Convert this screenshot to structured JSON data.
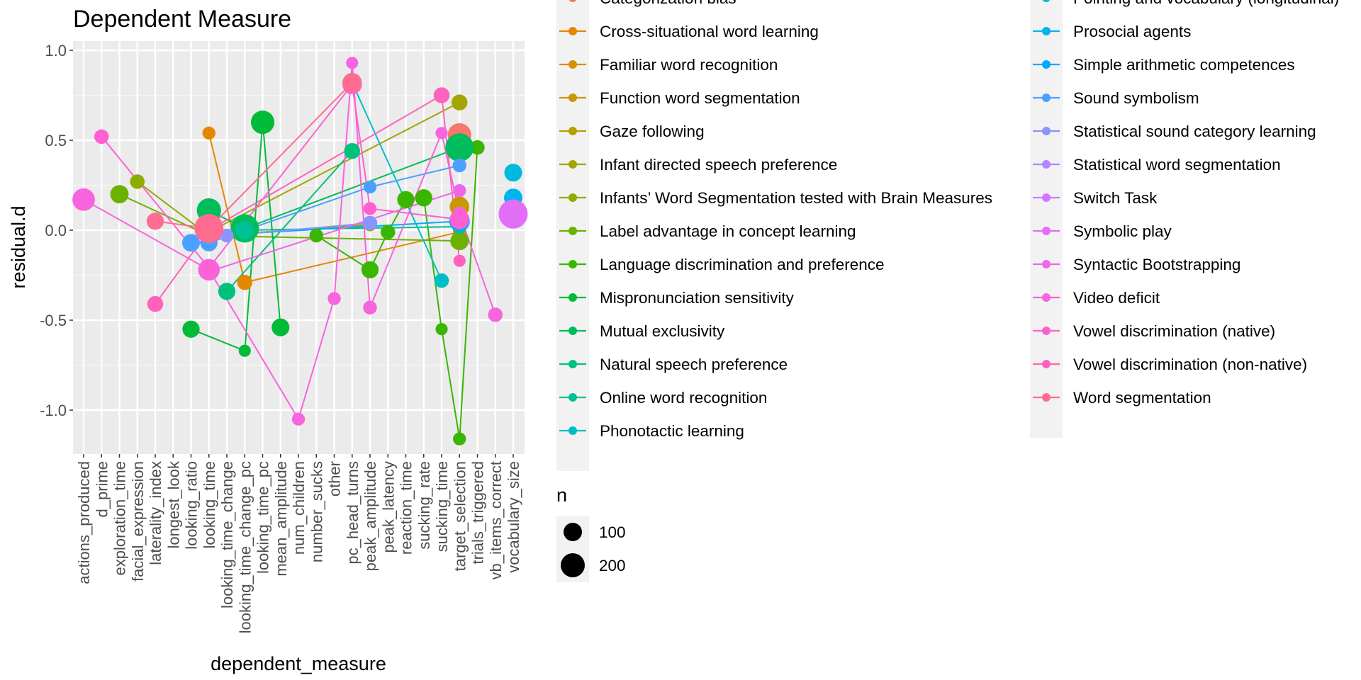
{
  "chart_data": {
    "type": "scatter",
    "title": "Dependent Measure",
    "xlabel": "dependent_measure",
    "ylabel": "residual.d",
    "ylim": [
      -1.25,
      1.05
    ],
    "yticks": [
      {
        "value": 1.0,
        "label": "1.0"
      },
      {
        "value": 0.5,
        "label": "0.5"
      },
      {
        "value": 0.0,
        "label": "0.0"
      },
      {
        "value": -0.5,
        "label": "-0.5"
      },
      {
        "value": -1.0,
        "label": "-1.0"
      }
    ],
    "categories": [
      "actions_produced",
      "d_prime",
      "exploration_time",
      "facial_expression",
      "laterality_index",
      "longest_look",
      "looking_ratio",
      "looking_time",
      "looking_time_change",
      "looking_time_change_pc",
      "looking_time_pc",
      "mean_amplitude",
      "num_children",
      "number_sucks",
      "other",
      "pc_head_turns",
      "peak_amplitude",
      "peak_latency",
      "reaction_time",
      "sucking_rate",
      "sucking_time",
      "target_selection",
      "trials_triggered",
      "vb_items_correct",
      "vocabulary_size"
    ],
    "background": "#ebebeb",
    "grid": true,
    "legend_placement": "right",
    "legend_title_size": "n",
    "size_legend": [
      {
        "label": "100",
        "n": 100
      },
      {
        "label": "200",
        "n": 200
      }
    ],
    "series": [
      {
        "name": "Categorization bias",
        "color": "#F8766D",
        "points": [
          {
            "x": "target_selection",
            "y": 0.53,
            "n": 130
          }
        ]
      },
      {
        "name": "Cross-situational word learning",
        "color": "#E58700",
        "points": [
          {
            "x": "looking_time",
            "y": 0.54,
            "n": 40
          },
          {
            "x": "looking_time_change_pc",
            "y": -0.29,
            "n": 55
          },
          {
            "x": "target_selection",
            "y": -0.01,
            "n": 40
          }
        ]
      },
      {
        "name": "Familiar word recognition",
        "color": "#D89000",
        "points": [
          {
            "x": "target_selection",
            "y": 0.13,
            "n": 90
          }
        ]
      },
      {
        "name": "Function word segmentation",
        "color": "#C99800",
        "points": [
          {
            "x": "target_selection",
            "y": 0.14,
            "n": 70
          }
        ]
      },
      {
        "name": "Gaze following",
        "color": "#B79F00",
        "points": [
          {
            "x": "target_selection",
            "y": 0.06,
            "n": 70
          }
        ]
      },
      {
        "name": "Infant directed speech preference",
        "color": "#A3A500",
        "points": [
          {
            "x": "looking_time",
            "y": -0.01,
            "n": 50
          },
          {
            "x": "target_selection",
            "y": 0.71,
            "n": 60
          }
        ]
      },
      {
        "name": "Infants’ Word Segmentation tested with Brain Measures",
        "color": "#8EAB00",
        "points": [
          {
            "x": "facial_expression",
            "y": 0.27,
            "n": 50
          },
          {
            "x": "looking_time",
            "y": -0.03,
            "n": 40
          },
          {
            "x": "peak_amplitude",
            "y": 0.03,
            "n": 40
          }
        ]
      },
      {
        "name": "Label advantage in concept learning",
        "color": "#6BB100",
        "points": [
          {
            "x": "exploration_time",
            "y": 0.2,
            "n": 80
          },
          {
            "x": "looking_time",
            "y": -0.03,
            "n": 40
          },
          {
            "x": "target_selection",
            "y": -0.06,
            "n": 80
          }
        ]
      },
      {
        "name": "Language discrimination and preference",
        "color": "#39B600",
        "points": [
          {
            "x": "number_sucks",
            "y": -0.03,
            "n": 45
          },
          {
            "x": "peak_amplitude",
            "y": -0.22,
            "n": 70
          },
          {
            "x": "peak_latency",
            "y": -0.01,
            "n": 50
          },
          {
            "x": "reaction_time",
            "y": 0.17,
            "n": 70
          },
          {
            "x": "sucking_rate",
            "y": 0.18,
            "n": 70
          },
          {
            "x": "sucking_time",
            "y": -0.55,
            "n": 35
          },
          {
            "x": "target_selection",
            "y": -1.16,
            "n": 40
          },
          {
            "x": "trials_triggered",
            "y": 0.46,
            "n": 50
          }
        ]
      },
      {
        "name": "Mispronunciation sensitivity",
        "color": "#00BA38",
        "points": [
          {
            "x": "looking_ratio",
            "y": -0.55,
            "n": 70
          },
          {
            "x": "looking_time_change_pc",
            "y": -0.67,
            "n": 35
          },
          {
            "x": "looking_time_pc",
            "y": 0.6,
            "n": 130
          },
          {
            "x": "mean_amplitude",
            "y": -0.54,
            "n": 75
          }
        ]
      },
      {
        "name": "Mutual exclusivity",
        "color": "#00BD5C",
        "points": [
          {
            "x": "looking_time",
            "y": 0.11,
            "n": 140
          },
          {
            "x": "looking_time_change_pc",
            "y": 0.01,
            "n": 190
          },
          {
            "x": "target_selection",
            "y": 0.46,
            "n": 190
          }
        ]
      },
      {
        "name": "Natural speech preference",
        "color": "#00C17A",
        "points": [
          {
            "x": "looking_time_change",
            "y": -0.34,
            "n": 70
          },
          {
            "x": "pc_head_turns",
            "y": 0.44,
            "n": 60
          }
        ]
      },
      {
        "name": "Online word recognition",
        "color": "#00C097",
        "points": [
          {
            "x": "looking_time_change_pc",
            "y": 0.0,
            "n": 80
          },
          {
            "x": "target_selection",
            "y": 0.02,
            "n": 50
          }
        ]
      },
      {
        "name": "Phonotactic learning",
        "color": "#00BFC4",
        "points": [
          {
            "x": "pc_head_turns",
            "y": 0.82,
            "n": 40
          },
          {
            "x": "sucking_time",
            "y": -0.28,
            "n": 50
          }
        ]
      },
      {
        "name": "Pointing and vocabulary (longitudinal)",
        "color": "#00BADE",
        "points": [
          {
            "x": "vocabulary_size",
            "y": 0.32,
            "n": 75
          }
        ]
      },
      {
        "name": "Prosocial agents",
        "color": "#00B4EF",
        "points": [
          {
            "x": "vocabulary_size",
            "y": 0.18,
            "n": 80
          }
        ]
      },
      {
        "name": "Simple arithmetic competences",
        "color": "#00A9FF",
        "points": [
          {
            "x": "looking_time",
            "y": -0.03,
            "n": 60
          },
          {
            "x": "target_selection",
            "y": 0.05,
            "n": 100
          }
        ]
      },
      {
        "name": "Sound symbolism",
        "color": "#4BA0FF",
        "points": [
          {
            "x": "looking_ratio",
            "y": -0.07,
            "n": 75
          },
          {
            "x": "looking_time",
            "y": -0.07,
            "n": 70
          },
          {
            "x": "peak_amplitude",
            "y": 0.24,
            "n": 40
          },
          {
            "x": "target_selection",
            "y": 0.36,
            "n": 45
          }
        ]
      },
      {
        "name": "Statistical sound category learning",
        "color": "#8B93FF",
        "points": [
          {
            "x": "looking_time_change",
            "y": -0.03,
            "n": 45
          },
          {
            "x": "peak_amplitude",
            "y": 0.04,
            "n": 50
          }
        ]
      },
      {
        "name": "Statistical word segmentation",
        "color": "#B386FF",
        "points": [
          {
            "x": "looking_time",
            "y": -0.01,
            "n": 70
          }
        ]
      },
      {
        "name": "Switch Task",
        "color": "#D177FF",
        "points": [
          {
            "x": "looking_time",
            "y": 0.01,
            "n": 60
          }
        ]
      },
      {
        "name": "Symbolic play",
        "color": "#E36EF6",
        "points": [
          {
            "x": "vocabulary_size",
            "y": 0.09,
            "n": 200
          }
        ]
      },
      {
        "name": "Syntactic Bootstrapping",
        "color": "#F066E9",
        "points": [
          {
            "x": "looking_time",
            "y": -0.23,
            "n": 50
          },
          {
            "x": "target_selection",
            "y": 0.22,
            "n": 40
          }
        ]
      },
      {
        "name": "Video deficit",
        "color": "#F863DE",
        "points": [
          {
            "x": "actions_produced",
            "y": 0.17,
            "n": 120
          },
          {
            "x": "looking_time",
            "y": -0.22,
            "n": 110
          },
          {
            "x": "num_children",
            "y": -1.05,
            "n": 40
          },
          {
            "x": "other",
            "y": -0.38,
            "n": 40
          },
          {
            "x": "pc_head_turns",
            "y": 0.93,
            "n": 35
          },
          {
            "x": "peak_amplitude",
            "y": -0.43,
            "n": 45
          },
          {
            "x": "sucking_time",
            "y": 0.54,
            "n": 35
          },
          {
            "x": "target_selection",
            "y": 0.09,
            "n": 50
          },
          {
            "x": "vb_items_correct",
            "y": -0.47,
            "n": 50
          }
        ]
      },
      {
        "name": "Vowel discrimination (native)",
        "color": "#FD61D1",
        "points": [
          {
            "x": "d_prime",
            "y": 0.52,
            "n": 50
          },
          {
            "x": "looking_time",
            "y": -0.21,
            "n": 40
          },
          {
            "x": "pc_head_turns",
            "y": 0.81,
            "n": 90
          },
          {
            "x": "peak_amplitude",
            "y": 0.12,
            "n": 40
          },
          {
            "x": "target_selection",
            "y": 0.06,
            "n": 90
          }
        ]
      },
      {
        "name": "Vowel discrimination (non-native)",
        "color": "#FF62BC",
        "points": [
          {
            "x": "laterality_index",
            "y": -0.41,
            "n": 60
          },
          {
            "x": "looking_time",
            "y": 0.0,
            "n": 45
          },
          {
            "x": "sucking_time",
            "y": 0.75,
            "n": 60
          },
          {
            "x": "target_selection",
            "y": -0.17,
            "n": 35
          }
        ]
      },
      {
        "name": "Word segmentation",
        "color": "#FF6C91",
        "points": [
          {
            "x": "laterality_index",
            "y": 0.05,
            "n": 70
          },
          {
            "x": "looking_time",
            "y": 0.01,
            "n": 200
          },
          {
            "x": "pc_head_turns",
            "y": 0.82,
            "n": 90
          }
        ]
      }
    ]
  }
}
